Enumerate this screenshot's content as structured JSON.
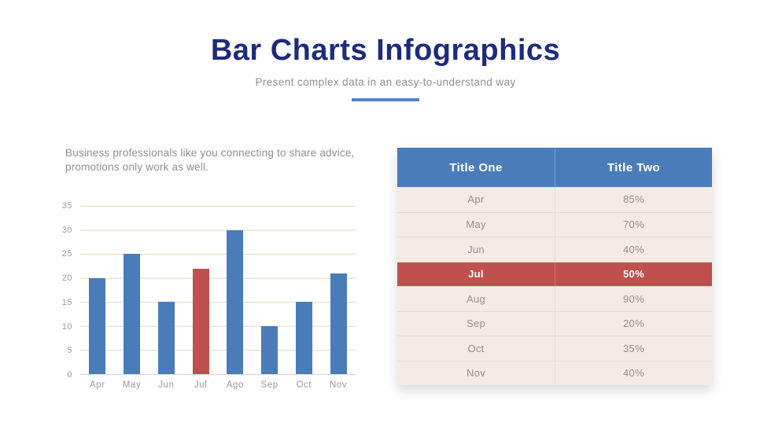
{
  "header": {
    "title": "Bar Charts Infographics",
    "subtitle": "Present complex data in an easy-to-understand way",
    "title_color": "#1e2b7d",
    "accent_color": "#5585c2"
  },
  "left": {
    "description": "Business professionals like you connecting to share advice, promotions only work as well."
  },
  "chart_data": {
    "type": "bar",
    "categories": [
      "Apr",
      "May",
      "Jun",
      "Jul",
      "Ago",
      "Sep",
      "Oct",
      "Nov"
    ],
    "values": [
      20,
      25,
      15,
      22,
      30,
      10,
      15,
      21
    ],
    "highlight_index": 3,
    "bar_color": "#4a7cba",
    "highlight_color": "#c0504d",
    "yticks": [
      0,
      5,
      10,
      15,
      20,
      25,
      30,
      35
    ],
    "ylim": [
      0,
      35
    ],
    "grid": true,
    "gridline_color": "#e8d8b8",
    "title": "",
    "xlabel": "",
    "ylabel": "",
    "legend": false
  },
  "table": {
    "headers": [
      "Title One",
      "Title Two"
    ],
    "header_bg": "#4a7cba",
    "row_bg": "#f5ebe4",
    "highlight_bg": "#c0504d",
    "rows": [
      {
        "month": "Apr",
        "value": "85%"
      },
      {
        "month": "May",
        "value": "70%"
      },
      {
        "month": "Jun",
        "value": "40%"
      },
      {
        "month": "Jul",
        "value": "50%",
        "highlight": true
      },
      {
        "month": "Aug",
        "value": "90%"
      },
      {
        "month": "Sep",
        "value": "20%"
      },
      {
        "month": "Oct",
        "value": "35%"
      },
      {
        "month": "Nov",
        "value": "40%"
      }
    ]
  }
}
